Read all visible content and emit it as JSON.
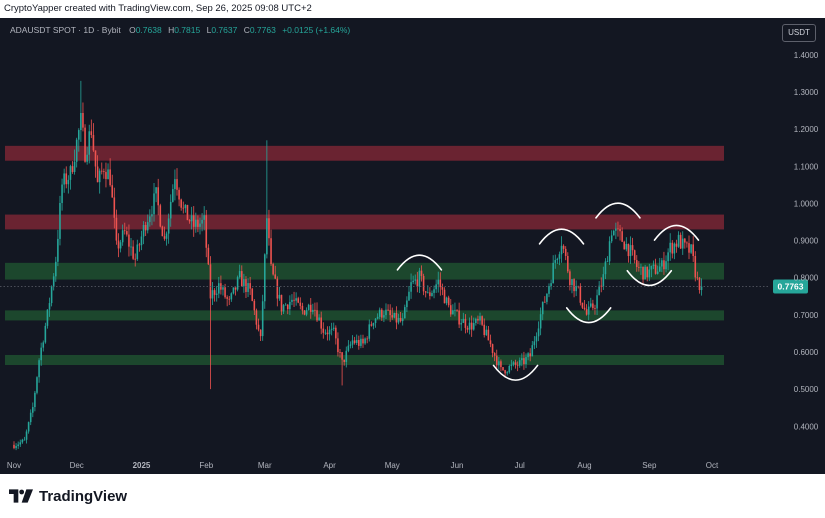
{
  "header": {
    "watermark": "CryptoYapper created with TradingView.com, Sep 26, 2025 09:08 UTC+2"
  },
  "legend": {
    "symbol": "ADAUSDT SPOT · 1D · Bybit",
    "open_label": "O",
    "open": "0.7638",
    "high_label": "H",
    "high": "0.7815",
    "low_label": "L",
    "low": "0.7637",
    "close_label": "C",
    "close": "0.7763",
    "change": "+0.0125 (+1.64%)"
  },
  "currency": "USDT",
  "last_price_label": "0.7763",
  "footer": {
    "brand": "TradingView"
  },
  "colors": {
    "background": "#131722",
    "up": "#26a69a",
    "down": "#ef5350",
    "resistance_zone": "#7a2634",
    "support_zone": "#1e4d2f",
    "price_tag": "#26a69a"
  },
  "chart_data": {
    "type": "candlestick",
    "symbol": "ADAUSDT",
    "timeframe": "1D",
    "x_tick_labels": [
      "Nov",
      "Dec",
      "2025",
      "Feb",
      "Mar",
      "Apr",
      "May",
      "Jun",
      "Jul",
      "Aug",
      "Sep",
      "Oct"
    ],
    "y_tick_labels": [
      "1.4000",
      "1.3000",
      "1.2000",
      "1.1000",
      "1.0000",
      "0.9000",
      "0.8000",
      "0.7000",
      "0.6000",
      "0.5000",
      "0.4000"
    ],
    "ylim": [
      0.32,
      1.44
    ],
    "last_price": 0.7763,
    "price_path": [
      [
        "2024-11-01",
        0.35
      ],
      [
        "2024-11-06",
        0.36
      ],
      [
        "2024-11-10",
        0.45
      ],
      [
        "2024-11-13",
        0.58
      ],
      [
        "2024-11-17",
        0.7
      ],
      [
        "2024-11-21",
        0.85
      ],
      [
        "2024-11-24",
        1.05
      ],
      [
        "2024-11-28",
        1.08
      ],
      [
        "2024-12-03",
        1.22
      ],
      [
        "2024-12-05",
        1.14
      ],
      [
        "2024-12-08",
        1.2
      ],
      [
        "2024-12-11",
        1.05
      ],
      [
        "2024-12-14",
        1.1
      ],
      [
        "2024-12-17",
        1.07
      ],
      [
        "2024-12-20",
        0.88
      ],
      [
        "2024-12-24",
        0.92
      ],
      [
        "2024-12-29",
        0.85
      ],
      [
        "2025-01-03",
        0.95
      ],
      [
        "2025-01-08",
        1.02
      ],
      [
        "2025-01-12",
        0.9
      ],
      [
        "2025-01-17",
        1.08
      ],
      [
        "2025-01-21",
        0.98
      ],
      [
        "2025-01-26",
        0.94
      ],
      [
        "2025-01-31",
        0.95
      ],
      [
        "2025-02-03",
        0.75
      ],
      [
        "2025-02-07",
        0.78
      ],
      [
        "2025-02-12",
        0.73
      ],
      [
        "2025-02-17",
        0.8
      ],
      [
        "2025-02-22",
        0.76
      ],
      [
        "2025-02-27",
        0.63
      ],
      [
        "2025-03-02",
        0.96
      ],
      [
        "2025-03-04",
        0.82
      ],
      [
        "2025-03-09",
        0.72
      ],
      [
        "2025-03-14",
        0.74
      ],
      [
        "2025-03-19",
        0.71
      ],
      [
        "2025-03-24",
        0.73
      ],
      [
        "2025-03-29",
        0.66
      ],
      [
        "2025-04-03",
        0.65
      ],
      [
        "2025-04-07",
        0.57
      ],
      [
        "2025-04-12",
        0.63
      ],
      [
        "2025-04-17",
        0.62
      ],
      [
        "2025-04-22",
        0.69
      ],
      [
        "2025-04-27",
        0.71
      ],
      [
        "2025-05-01",
        0.69
      ],
      [
        "2025-05-06",
        0.68
      ],
      [
        "2025-05-10",
        0.78
      ],
      [
        "2025-05-14",
        0.8
      ],
      [
        "2025-05-18",
        0.75
      ],
      [
        "2025-05-23",
        0.79
      ],
      [
        "2025-05-28",
        0.72
      ],
      [
        "2025-06-02",
        0.69
      ],
      [
        "2025-06-07",
        0.67
      ],
      [
        "2025-06-12",
        0.68
      ],
      [
        "2025-06-17",
        0.62
      ],
      [
        "2025-06-22",
        0.55
      ],
      [
        "2025-06-27",
        0.56
      ],
      [
        "2025-07-02",
        0.57
      ],
      [
        "2025-07-06",
        0.59
      ],
      [
        "2025-07-10",
        0.68
      ],
      [
        "2025-07-14",
        0.76
      ],
      [
        "2025-07-18",
        0.85
      ],
      [
        "2025-07-21",
        0.9
      ],
      [
        "2025-07-25",
        0.8
      ],
      [
        "2025-07-29",
        0.76
      ],
      [
        "2025-08-02",
        0.7
      ],
      [
        "2025-08-06",
        0.73
      ],
      [
        "2025-08-10",
        0.8
      ],
      [
        "2025-08-14",
        0.93
      ],
      [
        "2025-08-18",
        0.91
      ],
      [
        "2025-08-22",
        0.88
      ],
      [
        "2025-08-26",
        0.83
      ],
      [
        "2025-08-30",
        0.81
      ],
      [
        "2025-09-03",
        0.82
      ],
      [
        "2025-09-07",
        0.83
      ],
      [
        "2025-09-11",
        0.88
      ],
      [
        "2025-09-15",
        0.9
      ],
      [
        "2025-09-18",
        0.88
      ],
      [
        "2025-09-21",
        0.87
      ],
      [
        "2025-09-24",
        0.79
      ],
      [
        "2025-09-26",
        0.7763
      ]
    ],
    "zones": [
      {
        "kind": "resistance",
        "from": 1.115,
        "to": 1.155
      },
      {
        "kind": "resistance",
        "from": 0.93,
        "to": 0.97
      },
      {
        "kind": "support",
        "from": 0.795,
        "to": 0.84
      },
      {
        "kind": "support",
        "from": 0.685,
        "to": 0.712
      },
      {
        "kind": "support",
        "from": 0.565,
        "to": 0.592
      }
    ],
    "arc_annotations": [
      {
        "center": "2025-05-14",
        "level": 0.84,
        "shape": "cap"
      },
      {
        "center": "2025-06-29",
        "level": 0.545,
        "shape": "cup"
      },
      {
        "center": "2025-07-21",
        "level": 0.91,
        "shape": "cap"
      },
      {
        "center": "2025-08-03",
        "level": 0.7,
        "shape": "cup"
      },
      {
        "center": "2025-08-17",
        "level": 0.98,
        "shape": "cap"
      },
      {
        "center": "2025-09-01",
        "level": 0.8,
        "shape": "cup"
      },
      {
        "center": "2025-09-14",
        "level": 0.92,
        "shape": "cap"
      }
    ],
    "grid": false,
    "legend_position": "top-left"
  }
}
